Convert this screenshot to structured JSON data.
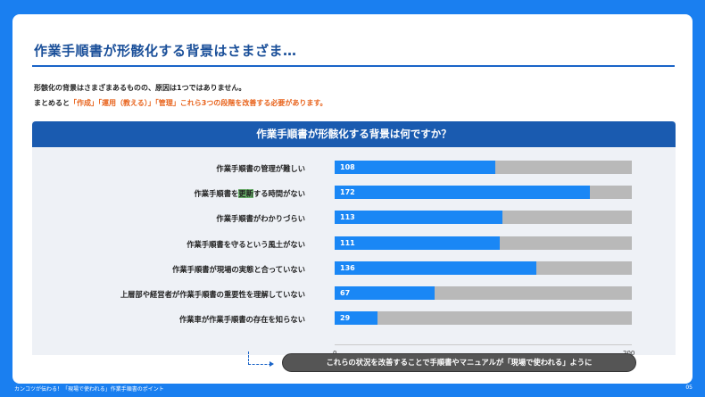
{
  "slide": {
    "title": "作業手順書が形骸化する背景はさまざま…",
    "intro_line1": "形骸化の背景はさまざまあるものの、原因は1つではありません。",
    "intro_line2_prefix": "まとめると",
    "intro_line2_highlight": "「作成」「運用（教える）」「管理」",
    "intro_line2_suffix": "これら3つの段階を改善する必要があります。",
    "callout": "これらの状況を改善することで手順書やマニュアルが「現場で使われる」ように",
    "footer_text": "カンコツが伝わる！「現場で使われる」作業手順書のポイント",
    "page_number": "05"
  },
  "chart_data": {
    "type": "bar",
    "orientation": "horizontal",
    "title": "作業手順書が形骸化する背景は何ですか？",
    "categories": [
      "作業手順書の管理が難しい",
      "作業手順書を更新する時間がない",
      "作業手順書がわかりづらい",
      "作業手順書を守るという風土がない",
      "作業手順書が現場の実態と合っていない",
      "上層部や経営者が作業手順書の重要性を理解していない",
      "作業車が作業手順書の存在を知らない"
    ],
    "values": [
      108,
      172,
      113,
      111,
      136,
      67,
      29
    ],
    "xlim": [
      0,
      200
    ],
    "ticks": [
      "0",
      "200"
    ],
    "highlight_word": "更新",
    "colors": {
      "bar": "#1a87f5",
      "track": "#b9b9b9",
      "header": "#1a5bb0"
    }
  }
}
